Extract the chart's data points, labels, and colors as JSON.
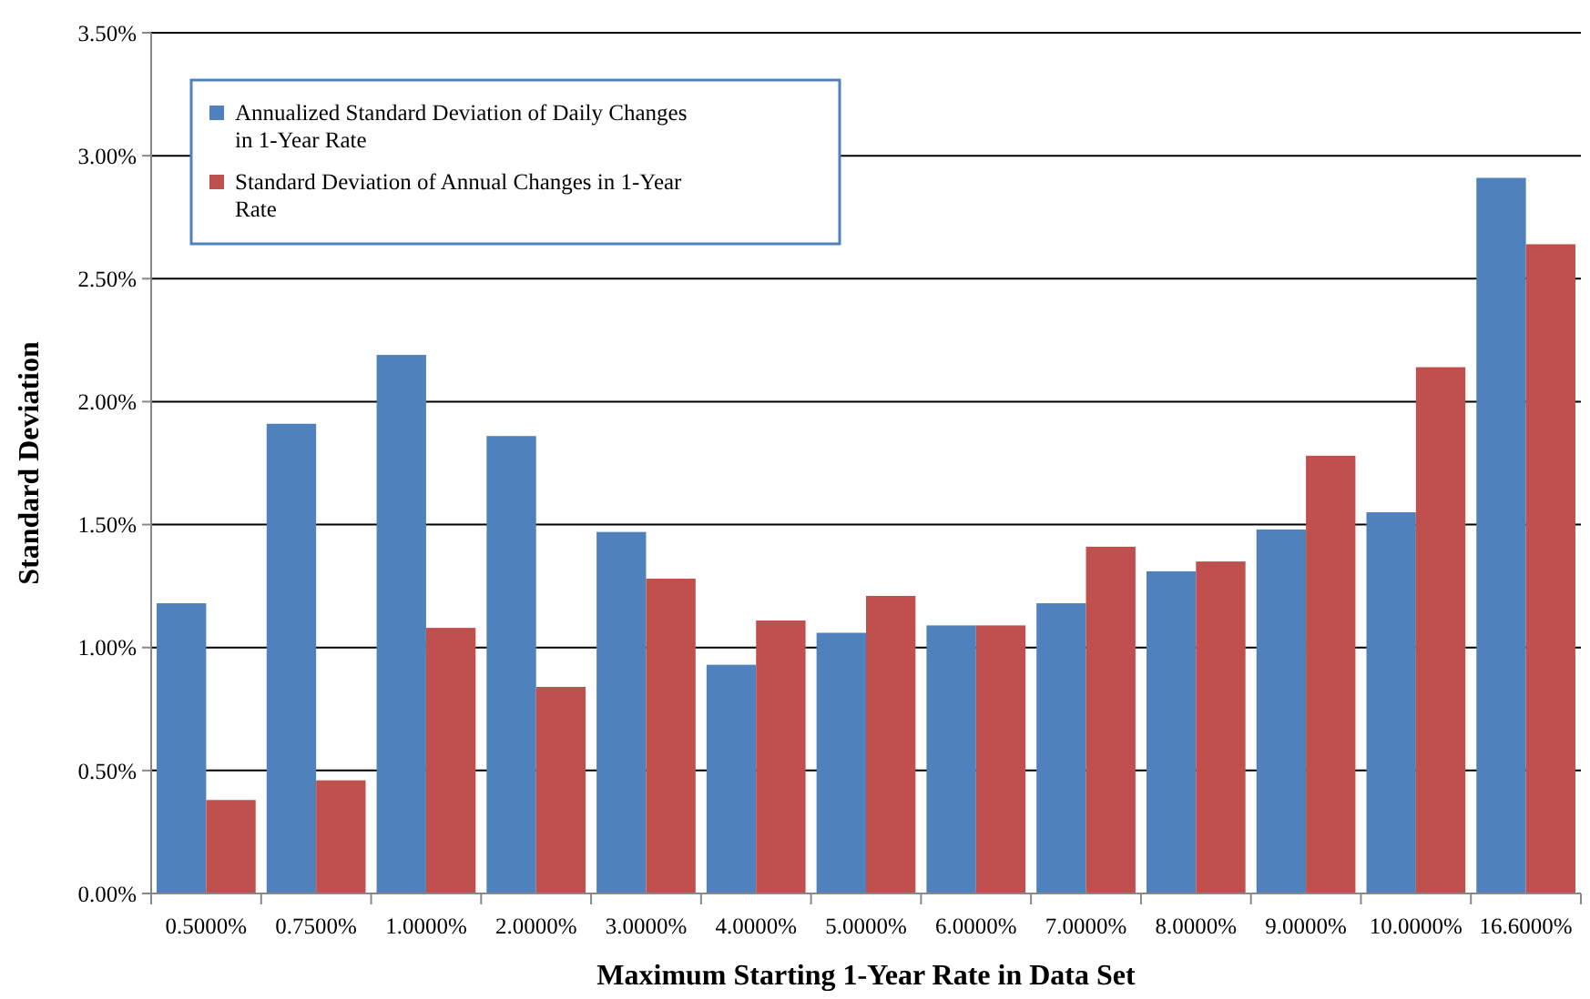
{
  "chart_data": {
    "type": "bar",
    "xlabel": "Maximum Starting 1-Year Rate  in Data Set",
    "ylabel": "Standard Deviation",
    "categories": [
      "0.5000%",
      "0.7500%",
      "1.0000%",
      "2.0000%",
      "3.0000%",
      "4.0000%",
      "5.0000%",
      "6.0000%",
      "7.0000%",
      "8.0000%",
      "9.0000%",
      "10.0000%",
      "16.6000%"
    ],
    "series": [
      {
        "name": "Annualized Standard Deviation of Daily Changes in 1-Year Rate",
        "color": "#4f81bd",
        "values": [
          1.18,
          1.91,
          2.19,
          1.86,
          1.47,
          0.93,
          1.06,
          1.09,
          1.18,
          1.31,
          1.48,
          1.55,
          2.91
        ]
      },
      {
        "name": "Standard Deviation of Annual Changes in 1-Year Rate",
        "color": "#c0504d",
        "values": [
          0.38,
          0.46,
          1.08,
          0.84,
          1.28,
          1.11,
          1.21,
          1.09,
          1.41,
          1.35,
          1.78,
          2.14,
          2.64
        ]
      }
    ],
    "ylim": [
      0,
      3.5
    ],
    "yticks": [
      {
        "value": 0,
        "label": "0.00%"
      },
      {
        "value": 0.5,
        "label": "0.50%"
      },
      {
        "value": 1,
        "label": "1.00%"
      },
      {
        "value": 1.5,
        "label": "1.50%"
      },
      {
        "value": 2,
        "label": "2.00%"
      },
      {
        "value": 2.5,
        "label": "2.50%"
      },
      {
        "value": 3,
        "label": "3.00%"
      },
      {
        "value": 3.5,
        "label": "3.50%"
      }
    ],
    "grid": "y",
    "legend": "top left"
  }
}
